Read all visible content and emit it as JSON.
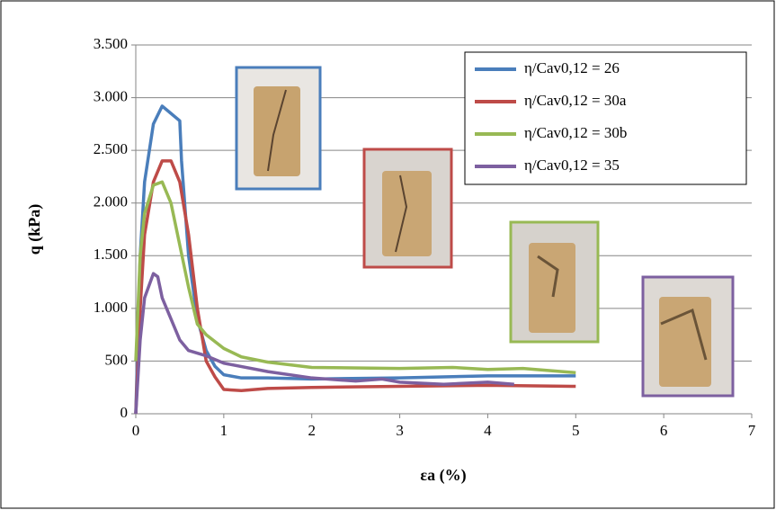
{
  "chart_data": {
    "type": "line",
    "x_label": "εa (%)",
    "y_label": "q (kPa)",
    "xlim": [
      0,
      7
    ],
    "xticks": [
      0,
      1,
      2,
      3,
      4,
      5,
      6,
      7
    ],
    "ylim": [
      0,
      3500
    ],
    "yticks": [
      0,
      500,
      {
        "value": 1000,
        "label": "1.000"
      },
      {
        "value": 1500,
        "label": "1.500"
      },
      {
        "value": 2000,
        "label": "2.000"
      },
      {
        "value": 2500,
        "label": "2.500"
      },
      {
        "value": 3000,
        "label": "3.000"
      },
      {
        "value": 3500,
        "label": "3.500"
      }
    ],
    "grid": true,
    "legend": "upper right",
    "series": [
      {
        "name": "η/Cav0,12 = 26",
        "color": "#4a7ebb",
        "x": [
          0,
          0.05,
          0.1,
          0.2,
          0.3,
          0.4,
          0.5,
          0.52,
          0.6,
          0.7,
          0.8,
          0.9,
          1.0,
          1.2,
          1.5,
          2,
          3,
          4,
          5
        ],
        "values": [
          0,
          1500,
          2200,
          2750,
          2920,
          2850,
          2780,
          2400,
          1500,
          900,
          600,
          450,
          370,
          340,
          340,
          330,
          340,
          360,
          360
        ]
      },
      {
        "name": "η/Cav0,12 = 30a",
        "color": "#be4b48",
        "x": [
          0,
          0.05,
          0.1,
          0.2,
          0.3,
          0.4,
          0.5,
          0.6,
          0.7,
          0.8,
          0.9,
          1.0,
          1.2,
          1.5,
          2,
          3,
          4,
          5
        ],
        "values": [
          0,
          1000,
          1700,
          2200,
          2400,
          2400,
          2200,
          1700,
          1000,
          500,
          350,
          230,
          220,
          240,
          250,
          260,
          270,
          260
        ]
      },
      {
        "name": "η/Cav0,12 = 30b",
        "color": "#98b954",
        "x": [
          0,
          0.05,
          0.1,
          0.2,
          0.3,
          0.4,
          0.5,
          0.6,
          0.7,
          0.8,
          1.0,
          1.2,
          1.5,
          2,
          3,
          3.6,
          4,
          4.4,
          5
        ],
        "values": [
          500,
          1500,
          1900,
          2170,
          2200,
          2000,
          1600,
          1200,
          850,
          750,
          620,
          540,
          490,
          440,
          430,
          440,
          420,
          430,
          390
        ]
      },
      {
        "name": "η/Cav0,12 = 35",
        "color": "#7d60a0",
        "x": [
          0,
          0.05,
          0.1,
          0.2,
          0.25,
          0.3,
          0.4,
          0.5,
          0.6,
          0.8,
          1.0,
          1.5,
          2,
          2.5,
          2.8,
          3,
          3.5,
          4,
          4.3
        ],
        "values": [
          0,
          700,
          1100,
          1330,
          1300,
          1100,
          900,
          700,
          600,
          550,
          480,
          400,
          340,
          310,
          330,
          300,
          280,
          300,
          280
        ]
      }
    ]
  }
}
